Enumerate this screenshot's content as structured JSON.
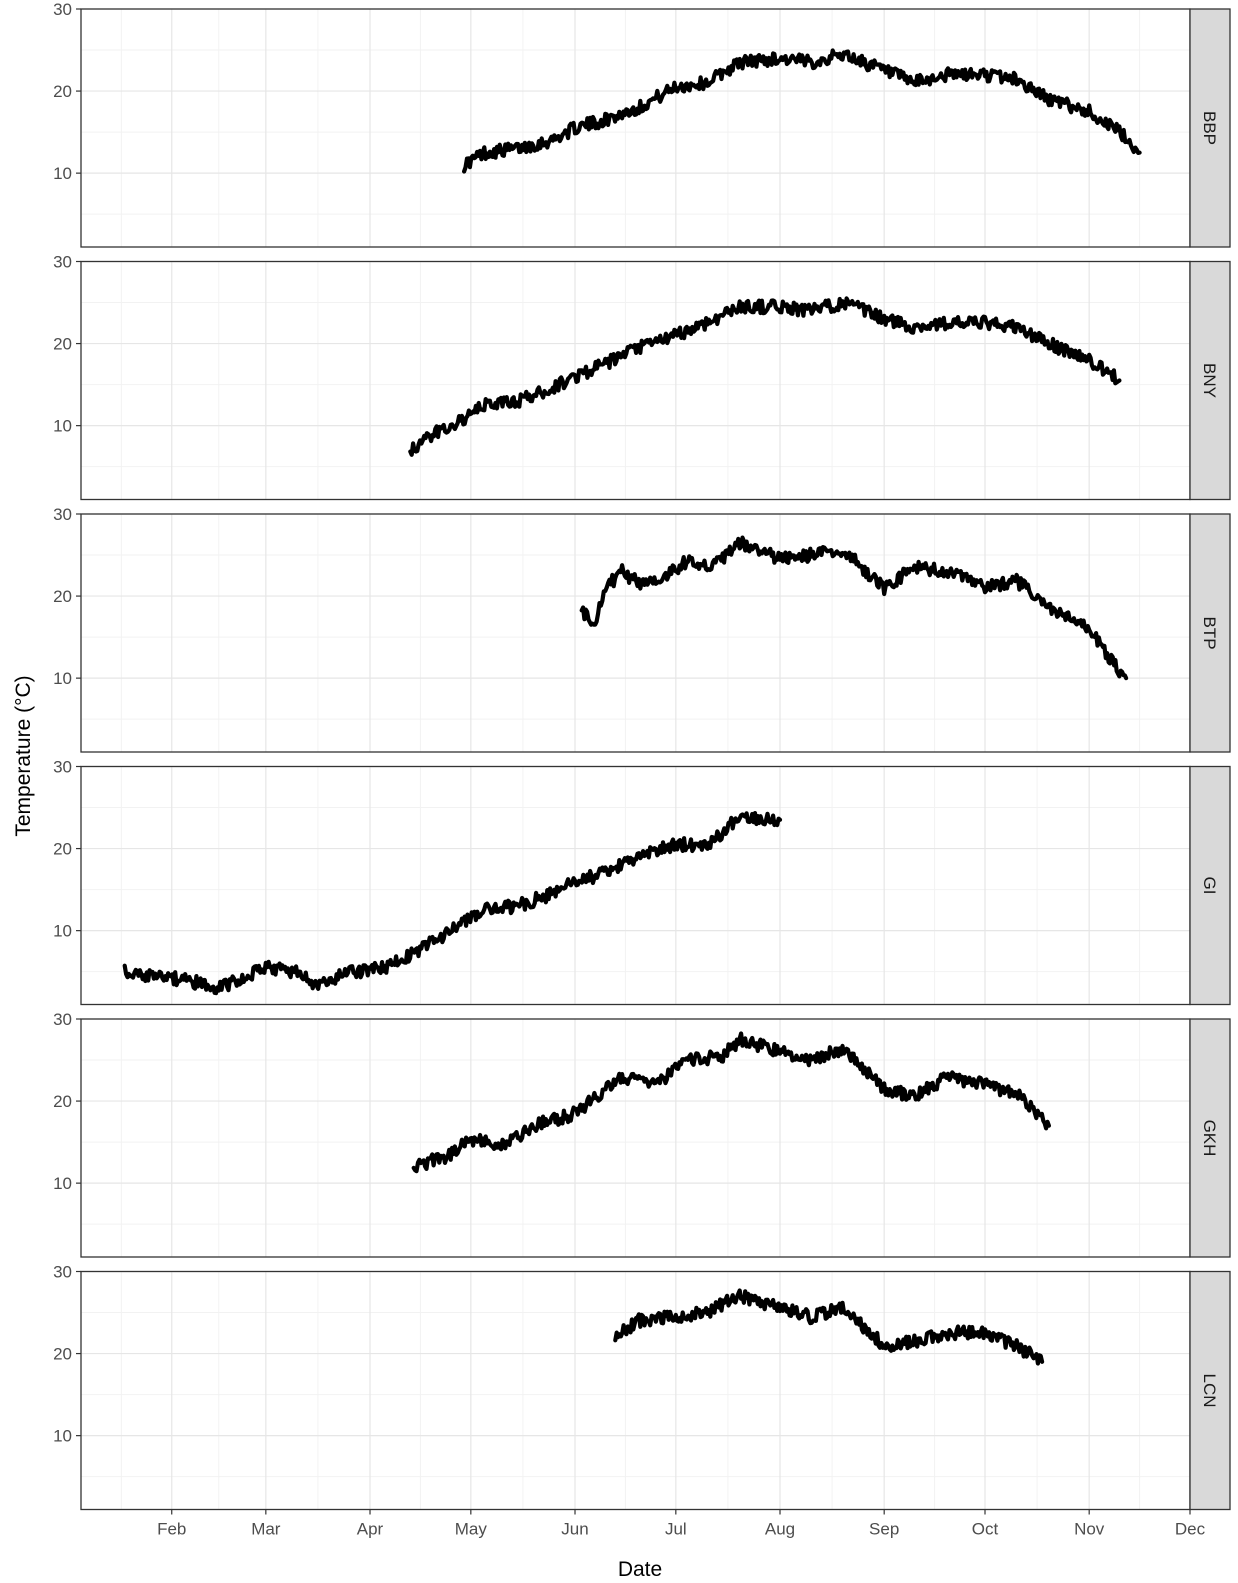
{
  "chart_data": {
    "type": "line",
    "xlabel": "Date",
    "ylabel": "Temperature (°C)",
    "x_ticks": [
      "Feb",
      "Mar",
      "Apr",
      "May",
      "Jun",
      "Jul",
      "Aug",
      "Sep",
      "Oct",
      "Nov",
      "Dec"
    ],
    "x_tick_dates": [
      "2019-02-01",
      "2019-03-01",
      "2019-04-01",
      "2019-05-01",
      "2019-06-01",
      "2019-07-01",
      "2019-08-01",
      "2019-09-01",
      "2019-10-01",
      "2019-11-01",
      "2019-12-01"
    ],
    "xlim": [
      "2019-01-05",
      "2019-12-01"
    ],
    "y_ticks": [
      "10",
      "20",
      "30"
    ],
    "ylim": [
      1,
      30
    ],
    "grid": true,
    "facet_strip": "right",
    "line_color": "#000000",
    "panels": [
      {
        "name": "BBP",
        "series": [
          {
            "x": "2019-04-29",
            "y": 11
          },
          {
            "x": "2019-05-05",
            "y": 12.5
          },
          {
            "x": "2019-05-15",
            "y": 13
          },
          {
            "x": "2019-05-25",
            "y": 14
          },
          {
            "x": "2019-06-01",
            "y": 15.5
          },
          {
            "x": "2019-06-10",
            "y": 16.5
          },
          {
            "x": "2019-06-20",
            "y": 18
          },
          {
            "x": "2019-07-01",
            "y": 20.5
          },
          {
            "x": "2019-07-10",
            "y": 21
          },
          {
            "x": "2019-07-20",
            "y": 23.5
          },
          {
            "x": "2019-08-01",
            "y": 24
          },
          {
            "x": "2019-08-10",
            "y": 23.5
          },
          {
            "x": "2019-08-20",
            "y": 24.5
          },
          {
            "x": "2019-09-01",
            "y": 22.5
          },
          {
            "x": "2019-09-10",
            "y": 21
          },
          {
            "x": "2019-09-20",
            "y": 22
          },
          {
            "x": "2019-10-01",
            "y": 22
          },
          {
            "x": "2019-10-10",
            "y": 21.5
          },
          {
            "x": "2019-10-20",
            "y": 19
          },
          {
            "x": "2019-11-01",
            "y": 17.5
          },
          {
            "x": "2019-11-10",
            "y": 15
          },
          {
            "x": "2019-11-16",
            "y": 12.5
          }
        ]
      },
      {
        "name": "BNY",
        "series": [
          {
            "x": "2019-04-13",
            "y": 7
          },
          {
            "x": "2019-04-20",
            "y": 9
          },
          {
            "x": "2019-04-30",
            "y": 11
          },
          {
            "x": "2019-05-05",
            "y": 12.5
          },
          {
            "x": "2019-05-15",
            "y": 13
          },
          {
            "x": "2019-05-25",
            "y": 14.5
          },
          {
            "x": "2019-06-01",
            "y": 16
          },
          {
            "x": "2019-06-10",
            "y": 17.5
          },
          {
            "x": "2019-06-20",
            "y": 19.5
          },
          {
            "x": "2019-07-01",
            "y": 21
          },
          {
            "x": "2019-07-10",
            "y": 22.5
          },
          {
            "x": "2019-07-20",
            "y": 24.5
          },
          {
            "x": "2019-08-01",
            "y": 24.5
          },
          {
            "x": "2019-08-10",
            "y": 24
          },
          {
            "x": "2019-08-20",
            "y": 25
          },
          {
            "x": "2019-09-01",
            "y": 23
          },
          {
            "x": "2019-09-10",
            "y": 22
          },
          {
            "x": "2019-09-20",
            "y": 22.5
          },
          {
            "x": "2019-10-01",
            "y": 22.5
          },
          {
            "x": "2019-10-10",
            "y": 22
          },
          {
            "x": "2019-10-20",
            "y": 20
          },
          {
            "x": "2019-11-01",
            "y": 18
          },
          {
            "x": "2019-11-10",
            "y": 15.5
          }
        ]
      },
      {
        "name": "BTP",
        "series": [
          {
            "x": "2019-06-03",
            "y": 18
          },
          {
            "x": "2019-06-07",
            "y": 17
          },
          {
            "x": "2019-06-10",
            "y": 21
          },
          {
            "x": "2019-06-15",
            "y": 23
          },
          {
            "x": "2019-06-20",
            "y": 21.5
          },
          {
            "x": "2019-06-28",
            "y": 22.5
          },
          {
            "x": "2019-07-05",
            "y": 24.5
          },
          {
            "x": "2019-07-12",
            "y": 23.5
          },
          {
            "x": "2019-07-20",
            "y": 26.5
          },
          {
            "x": "2019-08-01",
            "y": 24.5
          },
          {
            "x": "2019-08-10",
            "y": 25
          },
          {
            "x": "2019-08-20",
            "y": 25.5
          },
          {
            "x": "2019-09-01",
            "y": 21
          },
          {
            "x": "2019-09-10",
            "y": 23.5
          },
          {
            "x": "2019-09-20",
            "y": 23
          },
          {
            "x": "2019-10-01",
            "y": 21
          },
          {
            "x": "2019-10-10",
            "y": 22
          },
          {
            "x": "2019-10-20",
            "y": 18.5
          },
          {
            "x": "2019-11-01",
            "y": 16
          },
          {
            "x": "2019-11-08",
            "y": 12
          },
          {
            "x": "2019-11-12",
            "y": 10
          }
        ]
      },
      {
        "name": "GI",
        "series": [
          {
            "x": "2019-01-18",
            "y": 5
          },
          {
            "x": "2019-01-25",
            "y": 4.5
          },
          {
            "x": "2019-02-05",
            "y": 4
          },
          {
            "x": "2019-02-15",
            "y": 3
          },
          {
            "x": "2019-03-01",
            "y": 5.5
          },
          {
            "x": "2019-03-10",
            "y": 5
          },
          {
            "x": "2019-03-17",
            "y": 3.2
          },
          {
            "x": "2019-03-25",
            "y": 4.8
          },
          {
            "x": "2019-04-05",
            "y": 5.5
          },
          {
            "x": "2019-04-15",
            "y": 7.5
          },
          {
            "x": "2019-04-25",
            "y": 10
          },
          {
            "x": "2019-05-05",
            "y": 12.5
          },
          {
            "x": "2019-05-15",
            "y": 13
          },
          {
            "x": "2019-05-25",
            "y": 14.5
          },
          {
            "x": "2019-06-01",
            "y": 16
          },
          {
            "x": "2019-06-10",
            "y": 17
          },
          {
            "x": "2019-06-20",
            "y": 19
          },
          {
            "x": "2019-07-01",
            "y": 20.5
          },
          {
            "x": "2019-07-10",
            "y": 20.5
          },
          {
            "x": "2019-07-15",
            "y": 22
          },
          {
            "x": "2019-07-20",
            "y": 24
          },
          {
            "x": "2019-08-01",
            "y": 23.5
          }
        ]
      },
      {
        "name": "GKH",
        "series": [
          {
            "x": "2019-04-14",
            "y": 12
          },
          {
            "x": "2019-04-25",
            "y": 13.5
          },
          {
            "x": "2019-04-30",
            "y": 15.5
          },
          {
            "x": "2019-05-10",
            "y": 14.5
          },
          {
            "x": "2019-05-20",
            "y": 17
          },
          {
            "x": "2019-06-01",
            "y": 18.5
          },
          {
            "x": "2019-06-15",
            "y": 23
          },
          {
            "x": "2019-06-25",
            "y": 22
          },
          {
            "x": "2019-07-05",
            "y": 25
          },
          {
            "x": "2019-07-15",
            "y": 25.5
          },
          {
            "x": "2019-07-20",
            "y": 27.5
          },
          {
            "x": "2019-08-01",
            "y": 26
          },
          {
            "x": "2019-08-10",
            "y": 25
          },
          {
            "x": "2019-08-20",
            "y": 26.5
          },
          {
            "x": "2019-09-01",
            "y": 21.5
          },
          {
            "x": "2019-09-10",
            "y": 20.5
          },
          {
            "x": "2019-09-20",
            "y": 23
          },
          {
            "x": "2019-10-01",
            "y": 22
          },
          {
            "x": "2019-10-10",
            "y": 21
          },
          {
            "x": "2019-10-20",
            "y": 17
          }
        ]
      },
      {
        "name": "LCN",
        "series": [
          {
            "x": "2019-06-13",
            "y": 22
          },
          {
            "x": "2019-06-20",
            "y": 24
          },
          {
            "x": "2019-07-01",
            "y": 24.5
          },
          {
            "x": "2019-07-10",
            "y": 25
          },
          {
            "x": "2019-07-20",
            "y": 27
          },
          {
            "x": "2019-08-01",
            "y": 25.5
          },
          {
            "x": "2019-08-10",
            "y": 24.5
          },
          {
            "x": "2019-08-20",
            "y": 25.5
          },
          {
            "x": "2019-09-01",
            "y": 21
          },
          {
            "x": "2019-09-10",
            "y": 21.5
          },
          {
            "x": "2019-09-20",
            "y": 22.5
          },
          {
            "x": "2019-10-01",
            "y": 22.5
          },
          {
            "x": "2019-10-10",
            "y": 21
          },
          {
            "x": "2019-10-18",
            "y": 19
          }
        ]
      }
    ]
  }
}
